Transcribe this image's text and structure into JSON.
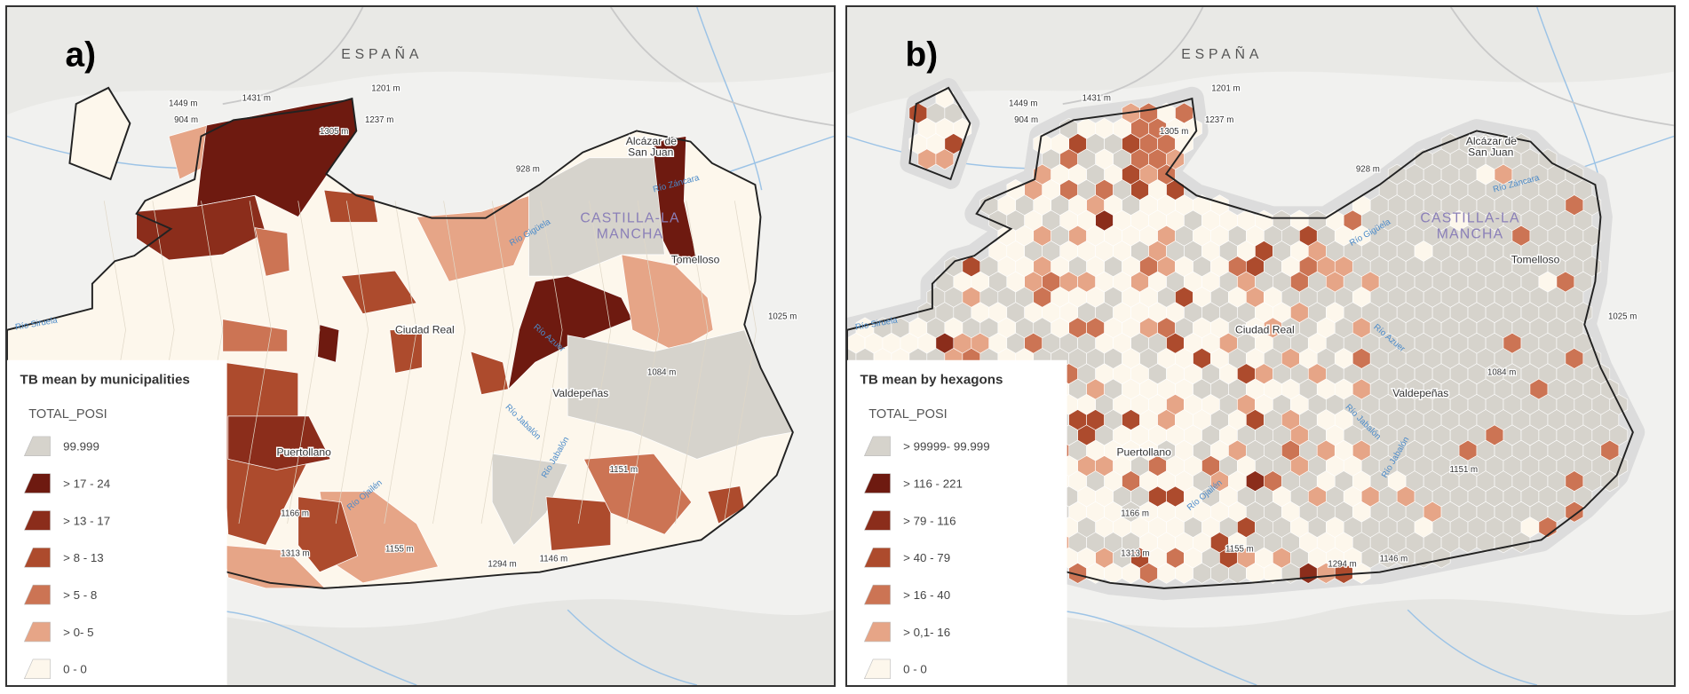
{
  "panels": [
    {
      "label": "a)",
      "country": "ESPAÑA",
      "region": [
        "CASTILLA-LA",
        "MANCHA"
      ],
      "places": [
        "Ciudad Real",
        "Puertollano",
        "Valdepeñas",
        "Tomelloso",
        "Alcázar de",
        "San Juan"
      ],
      "elevations": [
        "1431 m",
        "1201 m",
        "1237 m",
        "1449 m",
        "904 m",
        "1305 m",
        "928 m",
        "1025 m",
        "1084 m",
        "1151 m",
        "1166 m",
        "1313 m",
        "1155 m",
        "1294 m",
        "1146 m"
      ],
      "rivers": [
        "Río Gigüela",
        "Río Azuer",
        "Río Jabalón",
        "Río Ojailén",
        "Río Záncara",
        "Río Siruela",
        "Río Jabalón"
      ],
      "legend": {
        "title": "TB mean by municipalities",
        "field": "TOTAL_POSI",
        "items": [
          {
            "label": "99.999",
            "color": "#d6d3cc"
          },
          {
            "label": "> 17 - 24",
            "color": "#6e1a10"
          },
          {
            "label": "> 13 - 17",
            "color": "#8b2d1b"
          },
          {
            "label": "> 8 - 13",
            "color": "#ad4b2d"
          },
          {
            "label": "> 5 - 8",
            "color": "#cc7454"
          },
          {
            "label": "> 0- 5",
            "color": "#e6a587"
          },
          {
            "label": "0 - 0",
            "color": "#fdf7ec"
          }
        ]
      }
    },
    {
      "label": "b)",
      "country": "ESPAÑA",
      "region": [
        "CASTILLA-LA",
        "MANCHA"
      ],
      "places": [
        "Ciudad Real",
        "Puertollano",
        "Valdepeñas",
        "Tomelloso",
        "Alcázar de",
        "San Juan"
      ],
      "elevations": [
        "1431 m",
        "1201 m",
        "1237 m",
        "1449 m",
        "904 m",
        "1305 m",
        "928 m",
        "1025 m",
        "1084 m",
        "1151 m",
        "1166 m",
        "1313 m",
        "1155 m",
        "1294 m",
        "1146 m"
      ],
      "rivers": [
        "Río Gigüela",
        "Río Azuer",
        "Río Jabalón",
        "Río Ojailén",
        "Río Záncara",
        "Río Siruela",
        "Río Jabalón"
      ],
      "legend": {
        "title": "TB mean by hexagons",
        "field": "TOTAL_POSI",
        "items": [
          {
            "label": "> 99999- 99.999",
            "color": "#d6d3cc"
          },
          {
            "label": "> 116 - 221",
            "color": "#6e1a10"
          },
          {
            "label": "> 79 - 116",
            "color": "#8b2d1b"
          },
          {
            "label": "> 40 - 79",
            "color": "#ad4b2d"
          },
          {
            "label": "> 16 - 40",
            "color": "#cc7454"
          },
          {
            "label": "> 0,1- 16",
            "color": "#e6a587"
          },
          {
            "label": "0 - 0",
            "color": "#fdf7ec"
          }
        ]
      }
    }
  ]
}
